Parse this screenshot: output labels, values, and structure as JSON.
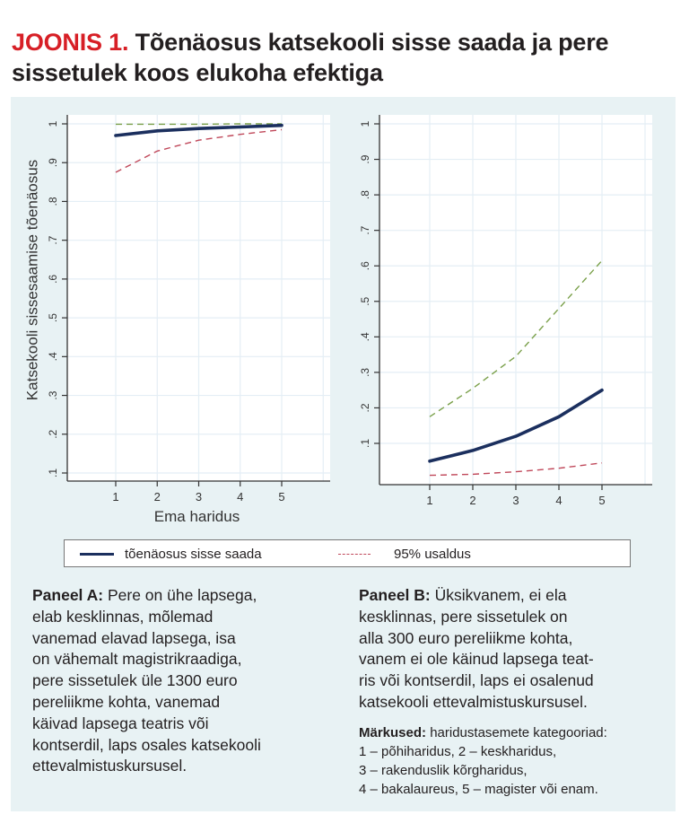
{
  "figure": {
    "title_number": "JOONIS 1.",
    "title_text": "Tõenäosus katsekooli sisse saada ja pere sissetulek koos elukoha efektiga"
  },
  "legend": {
    "estimate_label": "tõenäosus sisse saada",
    "ci_label": "95% usaldus"
  },
  "colors": {
    "estimate": "#1b2f5e",
    "upper_ci": "#7aa04a",
    "lower_ci": "#c0485a",
    "title_accent": "#d71f26",
    "panel_bg": "#e8f2f4",
    "grid": "#e4eef5"
  },
  "chart_data": [
    {
      "type": "line",
      "panel": "A",
      "title": "",
      "xlabel": "Ema haridus",
      "ylabel": "Katsekooli sissesaamise tõenäosus",
      "x": [
        1,
        2,
        3,
        4,
        5
      ],
      "x_ticks": [
        "1",
        "2",
        "3",
        "4",
        "5"
      ],
      "y_ticks": [
        ".1",
        ".2",
        ".3",
        ".4",
        ".5",
        ".6",
        ".7",
        ".8",
        ".9",
        "1"
      ],
      "ylim": [
        0.1,
        1.0
      ],
      "xlim": [
        0,
        6.4
      ],
      "grid": true,
      "series": [
        {
          "name": "tõenäosus sisse saada",
          "style": "solid",
          "values": [
            0.97,
            0.982,
            0.988,
            0.992,
            0.996
          ]
        },
        {
          "name": "95% usaldus (ülemine)",
          "style": "dashed",
          "values": [
            0.999,
            0.999,
            0.999,
            1.0,
            1.0
          ]
        },
        {
          "name": "95% usaldus (alumine)",
          "style": "dashed",
          "values": [
            0.875,
            0.93,
            0.958,
            0.973,
            0.985
          ]
        }
      ]
    },
    {
      "type": "line",
      "panel": "B",
      "title": "",
      "xlabel": "",
      "ylabel": "",
      "x": [
        1,
        2,
        3,
        4,
        5
      ],
      "x_ticks": [
        "1",
        "2",
        "3",
        "4",
        "5"
      ],
      "y_ticks": [
        ".1",
        ".2",
        ".3",
        ".4",
        ".5",
        ".6",
        ".7",
        ".8",
        ".9",
        "1"
      ],
      "ylim": [
        0.0,
        1.0
      ],
      "xlim": [
        0,
        6.4
      ],
      "grid": true,
      "series": [
        {
          "name": "tõenäosus sisse saada",
          "style": "solid",
          "values": [
            0.05,
            0.08,
            0.12,
            0.175,
            0.25
          ]
        },
        {
          "name": "95% usaldus (ülemine)",
          "style": "dashed",
          "values": [
            0.175,
            0.255,
            0.345,
            0.48,
            0.615
          ]
        },
        {
          "name": "95% usaldus (alumine)",
          "style": "dashed",
          "values": [
            0.01,
            0.013,
            0.02,
            0.03,
            0.045
          ]
        }
      ]
    }
  ],
  "notes": {
    "panel_a_label": "Paneel A:",
    "panel_a_lines": [
      " Pere on ühe lapsega,",
      "elab kesklinnas, mõlemad",
      "vanemad elavad lapsega, isa",
      "on vähemalt magistrikraadiga,",
      "pere sissetulek üle 1300 euro",
      "pereliikme kohta, vanemad",
      "käivad lapsega teatris või",
      "kontserdil, laps osales katsekooli",
      "ettevalmistuskursusel."
    ],
    "panel_b_label": "Paneel B:",
    "panel_b_lines": [
      " Üksikvanem, ei ela",
      "kesklinnas, pere sissetulek on",
      "alla 300 euro pereliikme kohta,",
      "vanem ei ole käinud lapsega teat-",
      "ris või kontserdil, laps ei osalenud",
      "katsekooli ettevalmistuskursusel."
    ],
    "remarks_label": "Märkused:",
    "remarks_lines": [
      " haridustasemete kategooriad:",
      "1 – põhiharidus, 2 – keskharidus,",
      "3 – rakenduslik kõrgharidus,",
      "4 – bakalaureus, 5 – magister või enam."
    ]
  }
}
